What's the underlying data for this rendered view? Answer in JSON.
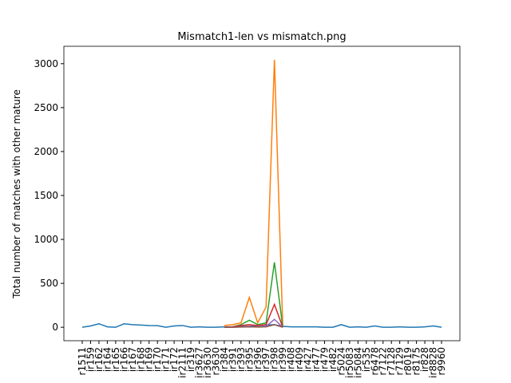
{
  "chart_data": {
    "type": "line",
    "title": "Mismatch1-len vs mismatch.png",
    "ylabel": "Total number of matches with other mature",
    "categories": [
      "r1511",
      "ir159",
      "ir162",
      "ir164",
      "ir165",
      "ir166",
      "ir167",
      "ir168",
      "ir169",
      "ir170",
      "ir171",
      "ir172",
      "ir2111",
      "ir319",
      "ir3627",
      "ir3630",
      "r3630",
      "ir384",
      "ir391",
      "ir393",
      "ir395",
      "ir396",
      "ir397",
      "ir398",
      "ir399",
      "ir408",
      "ir409",
      "ir427",
      "ir477",
      "ir479",
      "ir482",
      "r5024",
      "ir5083",
      "ir5084",
      "ir535",
      "r6478",
      "r7122",
      "r7128",
      "r7129",
      "r8019",
      "r8175",
      "ir828",
      "ir8828",
      "r9960"
    ],
    "series": [
      {
        "color": "#1f77b4",
        "values": [
          0,
          15,
          40,
          5,
          0,
          40,
          30,
          25,
          20,
          18,
          0,
          15,
          20,
          0,
          5,
          0,
          0,
          5,
          5,
          10,
          10,
          20,
          25,
          30,
          10,
          5,
          5,
          5,
          5,
          0,
          0,
          30,
          0,
          5,
          0,
          15,
          0,
          0,
          5,
          0,
          0,
          5,
          15,
          0
        ]
      },
      {
        "color": "#ff7f0e",
        "values": [
          null,
          null,
          null,
          null,
          null,
          null,
          null,
          null,
          null,
          null,
          null,
          null,
          null,
          null,
          null,
          null,
          null,
          20,
          30,
          50,
          340,
          50,
          230,
          3045,
          0,
          null,
          null,
          null,
          null,
          null,
          null,
          null,
          null,
          null,
          null,
          null,
          null,
          null,
          null,
          null,
          null,
          null,
          null,
          null
        ]
      },
      {
        "color": "#2ca02c",
        "values": [
          null,
          null,
          null,
          null,
          null,
          null,
          null,
          null,
          null,
          null,
          null,
          null,
          null,
          null,
          null,
          null,
          null,
          0,
          5,
          30,
          80,
          30,
          50,
          740,
          0,
          null,
          null,
          null,
          null,
          null,
          null,
          null,
          null,
          null,
          null,
          null,
          null,
          null,
          null,
          null,
          null,
          null,
          null,
          null
        ]
      },
      {
        "color": "#d62728",
        "values": [
          null,
          null,
          null,
          null,
          null,
          null,
          null,
          null,
          null,
          null,
          null,
          null,
          null,
          null,
          null,
          null,
          null,
          0,
          5,
          20,
          30,
          20,
          30,
          260,
          0,
          null,
          null,
          null,
          null,
          null,
          null,
          null,
          null,
          null,
          null,
          null,
          null,
          null,
          null,
          null,
          null,
          null,
          null,
          null
        ]
      },
      {
        "color": "#9467bd",
        "values": [
          null,
          null,
          null,
          null,
          null,
          null,
          null,
          null,
          null,
          null,
          null,
          null,
          null,
          null,
          null,
          null,
          null,
          0,
          0,
          5,
          10,
          5,
          10,
          90,
          0,
          null,
          null,
          null,
          null,
          null,
          null,
          null,
          null,
          null,
          null,
          null,
          null,
          null,
          null,
          null,
          null,
          null,
          null,
          null
        ]
      },
      {
        "color": "#8c564b",
        "values": [
          null,
          null,
          null,
          null,
          null,
          null,
          null,
          null,
          null,
          null,
          null,
          null,
          null,
          null,
          null,
          null,
          null,
          0,
          0,
          2,
          5,
          2,
          5,
          30,
          0,
          null,
          null,
          null,
          null,
          null,
          null,
          null,
          null,
          null,
          null,
          null,
          null,
          null,
          null,
          null,
          null,
          null,
          null,
          null
        ]
      }
    ],
    "ylim": [
      -153,
      3198
    ],
    "yticks": [
      0,
      500,
      1000,
      1500,
      2000,
      2500,
      3000
    ]
  }
}
